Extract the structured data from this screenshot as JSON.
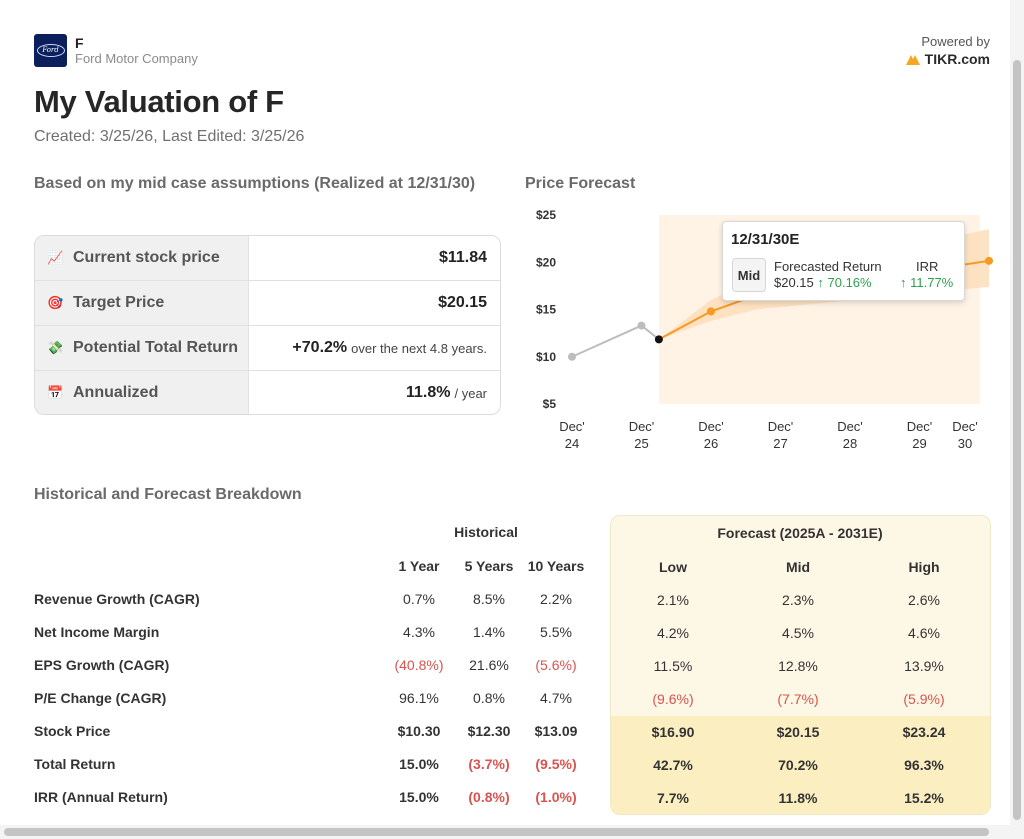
{
  "header": {
    "ticker": "F",
    "company": "Ford Motor Company",
    "logo_text": "Ford",
    "powered_by": "Powered by",
    "brand": "TIKR.com",
    "brand_color": "#f5a623",
    "title": "My Valuation of F",
    "dates": "Created: 3/25/26, Last Edited: 3/25/26"
  },
  "summary": {
    "heading": "Based on my mid case assumptions (Realized at 12/31/30)",
    "rows": [
      {
        "icon": "📈",
        "label": "Current stock price",
        "value": "$11.84",
        "suffix": ""
      },
      {
        "icon": "🎯",
        "label": "Target Price",
        "value": "$20.15",
        "suffix": ""
      },
      {
        "icon": "💸",
        "label": "Potential Total Return",
        "value": "+70.2%",
        "suffix": "over the next 4.8 years."
      },
      {
        "icon": "📅",
        "label": "Annualized",
        "value": "11.8%",
        "suffix": "/ year"
      }
    ]
  },
  "chart_data": {
    "type": "line",
    "title": "Price Forecast",
    "y_ticks": [
      "$25",
      "$20",
      "$15",
      "$10",
      "$5"
    ],
    "ylim": [
      5,
      25
    ],
    "x_ticks": [
      {
        "line1": "Dec'",
        "line2": "24"
      },
      {
        "line1": "Dec'",
        "line2": "25"
      },
      {
        "line1": "Dec'",
        "line2": "26"
      },
      {
        "line1": "Dec'",
        "line2": "27"
      },
      {
        "line1": "Dec'",
        "line2": "28"
      },
      {
        "line1": "Dec'",
        "line2": "29"
      },
      {
        "line1": "Dec'",
        "line2": "30"
      }
    ],
    "historical": [
      {
        "x": 2024.95,
        "y": 10.0
      },
      {
        "x": 2025.95,
        "y": 13.3
      },
      {
        "x": 2026.2,
        "y": 11.84
      }
    ],
    "forecast_mid": [
      {
        "x": 2026.2,
        "y": 11.84
      },
      {
        "x": 2026.95,
        "y": 14.8
      },
      {
        "x": 2027.6,
        "y": 16.5
      },
      {
        "x": 2030.95,
        "y": 20.15
      }
    ],
    "band_low": [
      11.84,
      13.8,
      15.0,
      17.4
    ],
    "band_high": [
      11.84,
      16.0,
      18.2,
      23.5
    ],
    "colors": {
      "historical": "#bdbdbd",
      "forecast": "#f59a23",
      "band": "#fcdcb8",
      "shade": "#fff3e6"
    },
    "tooltip": {
      "date": "12/31/30E",
      "scenario": "Mid",
      "fr_label": "Forecasted Return",
      "price": "$20.15",
      "fr_pct": "↑ 70.16%",
      "irr_label": "IRR",
      "irr_pct": "↑ 11.77%"
    }
  },
  "breakdown": {
    "heading": "Historical and Forecast Breakdown",
    "historical_label": "Historical",
    "forecast_label": "Forecast (2025A - 2031E)",
    "hist_cols": [
      "1 Year",
      "5 Years",
      "10 Years"
    ],
    "fc_cols": [
      "Low",
      "Mid",
      "High"
    ],
    "rows": [
      {
        "label": "Revenue Growth (CAGR)",
        "bold": false,
        "hist": [
          "0.7%",
          "8.5%",
          "2.2%"
        ],
        "fc": [
          "2.1%",
          "2.3%",
          "2.6%"
        ]
      },
      {
        "label": "Net Income Margin",
        "bold": false,
        "hist": [
          "4.3%",
          "1.4%",
          "5.5%"
        ],
        "fc": [
          "4.2%",
          "4.5%",
          "4.6%"
        ]
      },
      {
        "label": "EPS Growth (CAGR)",
        "bold": false,
        "hist": [
          "(40.8%)",
          "21.6%",
          "(5.6%)"
        ],
        "fc": [
          "11.5%",
          "12.8%",
          "13.9%"
        ]
      },
      {
        "label": "P/E Change (CAGR)",
        "bold": false,
        "hist": [
          "96.1%",
          "0.8%",
          "4.7%"
        ],
        "fc": [
          "(9.6%)",
          "(7.7%)",
          "(5.9%)"
        ]
      },
      {
        "label": "Stock Price",
        "bold": true,
        "hist": [
          "$10.30",
          "$12.30",
          "$13.09"
        ],
        "fc": [
          "$16.90",
          "$20.15",
          "$23.24"
        ]
      },
      {
        "label": "Total Return",
        "bold": true,
        "hist": [
          "15.0%",
          "(3.7%)",
          "(9.5%)"
        ],
        "fc": [
          "42.7%",
          "70.2%",
          "96.3%"
        ]
      },
      {
        "label": "IRR (Annual Return)",
        "bold": true,
        "hist": [
          "15.0%",
          "(0.8%)",
          "(1.0%)"
        ],
        "fc": [
          "7.7%",
          "11.8%",
          "15.2%"
        ]
      }
    ]
  }
}
